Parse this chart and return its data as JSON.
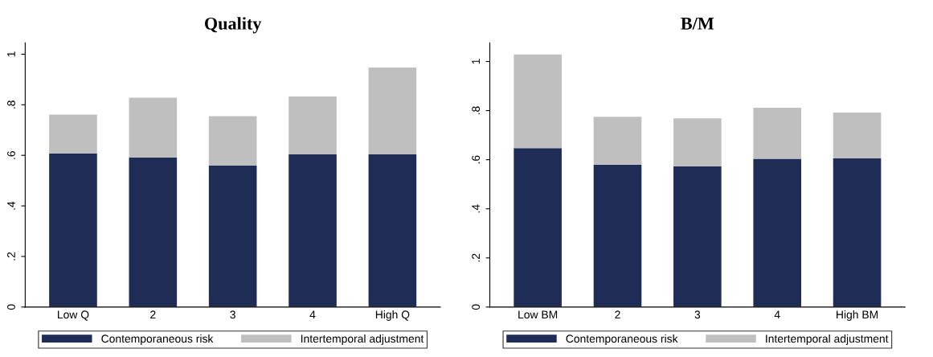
{
  "chart_data": [
    {
      "type": "bar",
      "title": "Quality",
      "stacked": true,
      "categories": [
        "Low Q",
        "2",
        "3",
        "4",
        "High Q"
      ],
      "series": [
        {
          "name": "Contemporaneous risk",
          "color": "#1f2c56",
          "values": [
            0.608,
            0.592,
            0.559,
            0.604,
            0.604
          ]
        },
        {
          "name": "Intertemporal adjustment",
          "color": "#bfbfbf",
          "values": [
            0.153,
            0.236,
            0.196,
            0.229,
            0.343
          ]
        }
      ],
      "ylim": [
        0,
        1.045
      ],
      "yticks": [
        0,
        {
          "value": 0.2,
          "label": ".2"
        },
        {
          "value": 0.4,
          "label": ".4"
        },
        {
          "value": 0.6,
          "label": ".6"
        },
        {
          "value": 0.8,
          "label": ".8"
        },
        1
      ],
      "grid": false,
      "legend": "bottom"
    },
    {
      "type": "bar",
      "title": "B/M",
      "stacked": true,
      "categories": [
        "Low BM",
        "2",
        "3",
        "4",
        "High BM"
      ],
      "series": [
        {
          "name": "Contemporaneous risk",
          "color": "#1f2c56",
          "values": [
            0.647,
            0.58,
            0.573,
            0.604,
            0.605
          ]
        },
        {
          "name": "Intertemporal adjustment",
          "color": "#bfbfbf",
          "values": [
            0.382,
            0.195,
            0.195,
            0.208,
            0.187
          ]
        }
      ],
      "ylim": [
        0,
        1.076
      ],
      "yticks": [
        0,
        {
          "value": 0.2,
          "label": ".2"
        },
        {
          "value": 0.4,
          "label": ".4"
        },
        {
          "value": 0.6,
          "label": ".6"
        },
        {
          "value": 0.8,
          "label": ".8"
        },
        1
      ],
      "grid": false,
      "legend": "bottom"
    }
  ]
}
